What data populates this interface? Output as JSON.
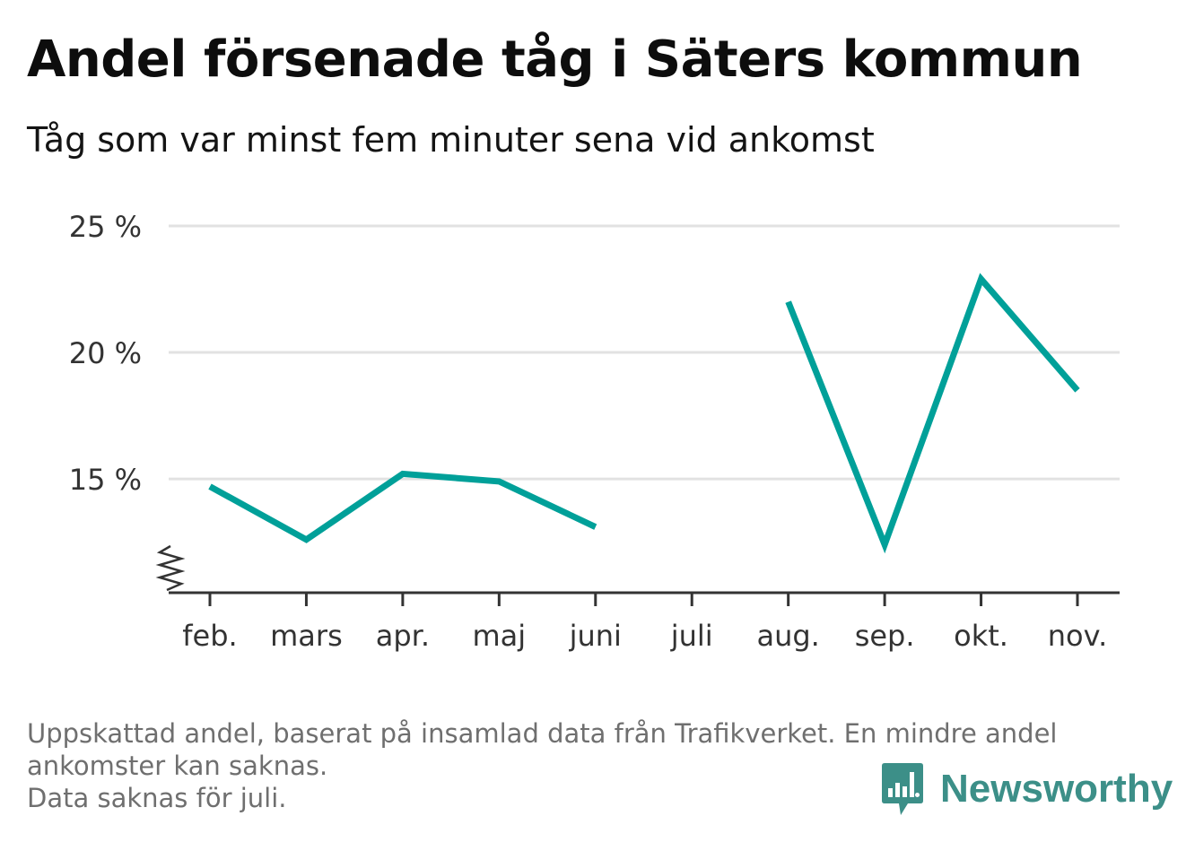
{
  "header": {
    "title": "Andel försenade tåg i Säters kommun",
    "subtitle": "Tåg som var minst fem minuter sena vid ankomst"
  },
  "chart_data": {
    "type": "line",
    "title": "Andel försenade tåg i Säters kommun",
    "subtitle": "Tåg som var minst fem minuter sena vid ankomst",
    "xlabel": "",
    "ylabel": "",
    "categories": [
      "feb.",
      "mars",
      "apr.",
      "maj",
      "juni",
      "juli",
      "aug.",
      "sep.",
      "okt.",
      "nov."
    ],
    "series": [
      {
        "values": [
          14.7,
          12.6,
          15.2,
          14.9,
          13.1,
          null,
          22.0,
          12.4,
          22.9,
          18.5
        ]
      }
    ],
    "y_ticks": [
      {
        "value": 15,
        "label": "15 %"
      },
      {
        "value": 20,
        "label": "20 %"
      },
      {
        "value": 25,
        "label": "25 %"
      }
    ],
    "ylim": [
      10.5,
      25
    ],
    "y_axis_break": true,
    "grid": "horizontal",
    "legend": "none",
    "line_color": "#00a099",
    "grid_color": "#e2e2e2",
    "axis_color": "#333333"
  },
  "footer": {
    "note_line1": "Uppskattad andel, baserat på insamlad data från Trafikverket. En mindre andel",
    "note_line2": "ankomster kan saknas.",
    "note_line3": "Data saknas för juli.",
    "brand": "Newsworthy",
    "brand_color": "#3c8f88"
  }
}
